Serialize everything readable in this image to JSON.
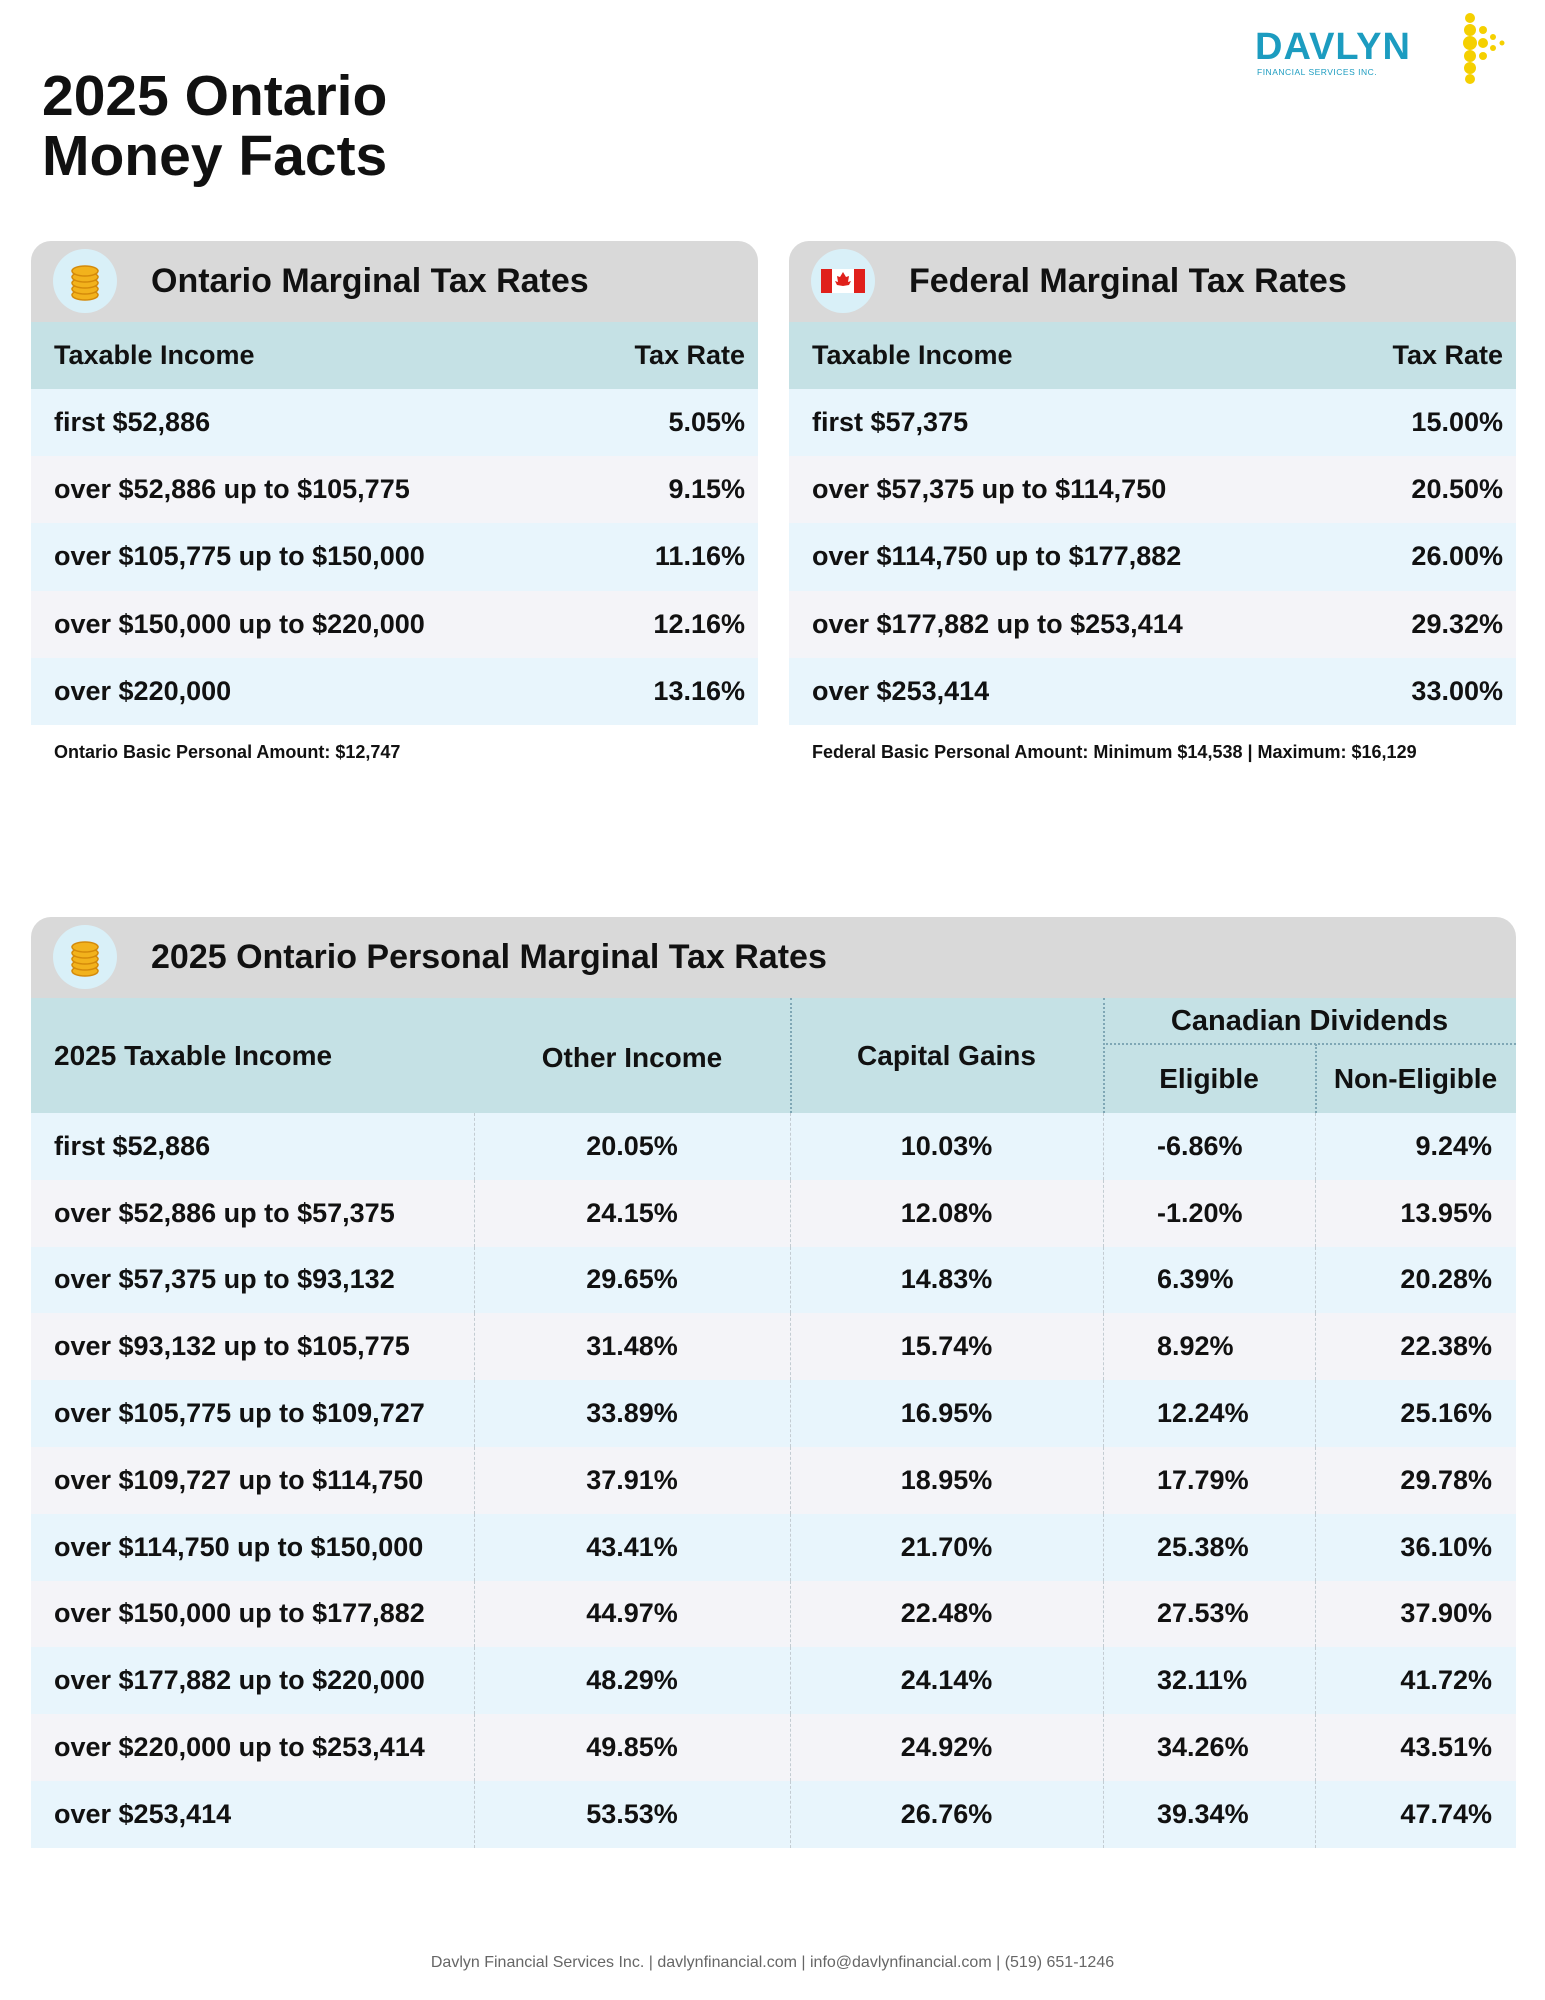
{
  "header": {
    "title_lines": [
      "2025 Ontario",
      "Money Facts"
    ],
    "logo": {
      "name": "DAVLYN",
      "subtitle": "FINANCIAL SERVICES INC."
    }
  },
  "ontario": {
    "title": "Ontario Marginal Tax Rates",
    "headers": [
      "Taxable Income",
      "Tax Rate"
    ],
    "rows": [
      [
        "first $52,886",
        "5.05%"
      ],
      [
        "over $52,886 up to $105,775",
        "9.15%"
      ],
      [
        "over $105,775 up to $150,000",
        "11.16%"
      ],
      [
        "over $150,000 up to $220,000",
        "12.16%"
      ],
      [
        "over $220,000",
        "13.16%"
      ]
    ],
    "note": "Ontario Basic Personal Amount:  $12,747"
  },
  "federal": {
    "title": "Federal Marginal Tax Rates",
    "headers": [
      "Taxable Income",
      "Tax Rate"
    ],
    "rows": [
      [
        "first $57,375",
        "15.00%"
      ],
      [
        "over $57,375 up to $114,750",
        "20.50%"
      ],
      [
        "over $114,750 up to $177,882",
        "26.00%"
      ],
      [
        "over $177,882 up to $253,414",
        "29.32%"
      ],
      [
        "over $253,414",
        "33.00%"
      ]
    ],
    "note": "Federal Basic Personal Amount:  Minimum $14,538 | Maximum: $16,129"
  },
  "personal": {
    "title": "2025 Ontario Personal Marginal Tax Rates",
    "group_header": "Canadian Dividends",
    "headers": [
      "2025 Taxable Income",
      "Other Income",
      "Capital Gains",
      "Eligible",
      "Non-Eligible"
    ],
    "rows": [
      [
        "first $52,886",
        "20.05%",
        "10.03%",
        "-6.86%",
        "9.24%"
      ],
      [
        "over $52,886 up to $57,375",
        "24.15%",
        "12.08%",
        "-1.20%",
        "13.95%"
      ],
      [
        "over $57,375 up to $93,132",
        "29.65%",
        "14.83%",
        "6.39%",
        "20.28%"
      ],
      [
        "over $93,132 up to $105,775",
        "31.48%",
        "15.74%",
        "8.92%",
        "22.38%"
      ],
      [
        "over $105,775 up to $109,727",
        "33.89%",
        "16.95%",
        "12.24%",
        "25.16%"
      ],
      [
        "over $109,727 up to $114,750",
        "37.91%",
        "18.95%",
        "17.79%",
        "29.78%"
      ],
      [
        "over $114,750 up to $150,000",
        "43.41%",
        "21.70%",
        "25.38%",
        "36.10%"
      ],
      [
        "over $150,000 up to $177,882",
        "44.97%",
        "22.48%",
        "27.53%",
        "37.90%"
      ],
      [
        "over $177,882 up to $220,000",
        "48.29%",
        "24.14%",
        "32.11%",
        "41.72%"
      ],
      [
        "over $220,000 up to $253,414",
        "49.85%",
        "24.92%",
        "34.26%",
        "43.51%"
      ],
      [
        "over $253,414",
        "53.53%",
        "26.76%",
        "39.34%",
        "47.74%"
      ]
    ]
  },
  "footer": "Davlyn Financial Services Inc. | davlynfinancial.com | info@davlynfinancial.com | (519) 651-1246"
}
